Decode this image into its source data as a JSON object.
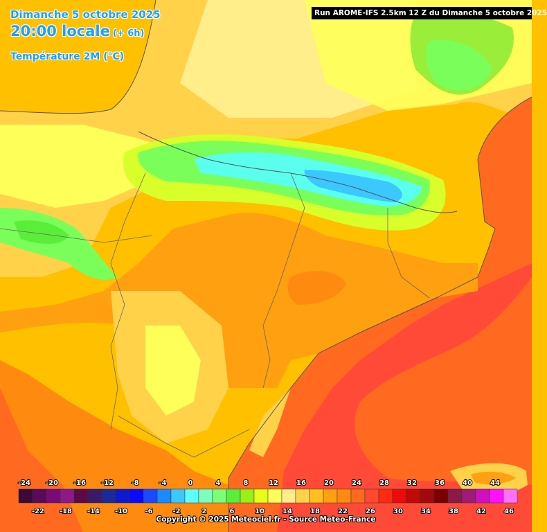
{
  "header": {
    "date": "Dimanche 5 octobre 2025",
    "time": "20:00 locale",
    "offset": "(+ 6h)",
    "parameter": "Température 2M (°C)"
  },
  "run_info": "Run AROME-IFS 2.5km 12 Z du Dimanche 5 octobre 2025",
  "copyright": "Copyright © 2025 Meteociel.fr - Source Meteo-France",
  "legend": {
    "values": [
      -24,
      -22,
      -20,
      -18,
      -16,
      -14,
      -12,
      -10,
      -8,
      -6,
      -4,
      -2,
      0,
      2,
      4,
      6,
      8,
      10,
      12,
      14,
      16,
      18,
      20,
      22,
      24,
      26,
      28,
      30,
      32,
      34,
      36,
      38,
      40,
      42,
      44,
      46
    ],
    "colors": [
      "#3a0a3a",
      "#5a0a5a",
      "#7a0a7a",
      "#8a1a8a",
      "#5a0a4a",
      "#3a1a6a",
      "#1a2a9a",
      "#0a1ad0",
      "#0a0aff",
      "#1a4aff",
      "#1a8aff",
      "#3ac8ff",
      "#5affff",
      "#7affc0",
      "#7aff7a",
      "#5aee3a",
      "#9aee1a",
      "#e6ff1a",
      "#ffff5a",
      "#ffee8a",
      "#ffd24a",
      "#ffc020",
      "#ffa010",
      "#ff8a10",
      "#ff6a20",
      "#ff4a30",
      "#ff2a10",
      "#ee0a0a",
      "#c00a0a",
      "#a00a0a",
      "#7a0000",
      "#8a1a4a",
      "#a01a7a",
      "#d010c0",
      "#ff10ff",
      "#ff70ff"
    ]
  },
  "map_colors": {
    "hot_sea": "#ff4a38",
    "sea": "#ff6a20",
    "orange": "#ffa010",
    "deep_orange": "#ff8a10",
    "amber": "#ffc000",
    "light": "#ffd24a",
    "pale": "#ffee8a",
    "yellow": "#ffff5a",
    "lime": "#d8ff2a",
    "green": "#7aff5a",
    "cyan": "#5affee",
    "border": "#555555"
  }
}
